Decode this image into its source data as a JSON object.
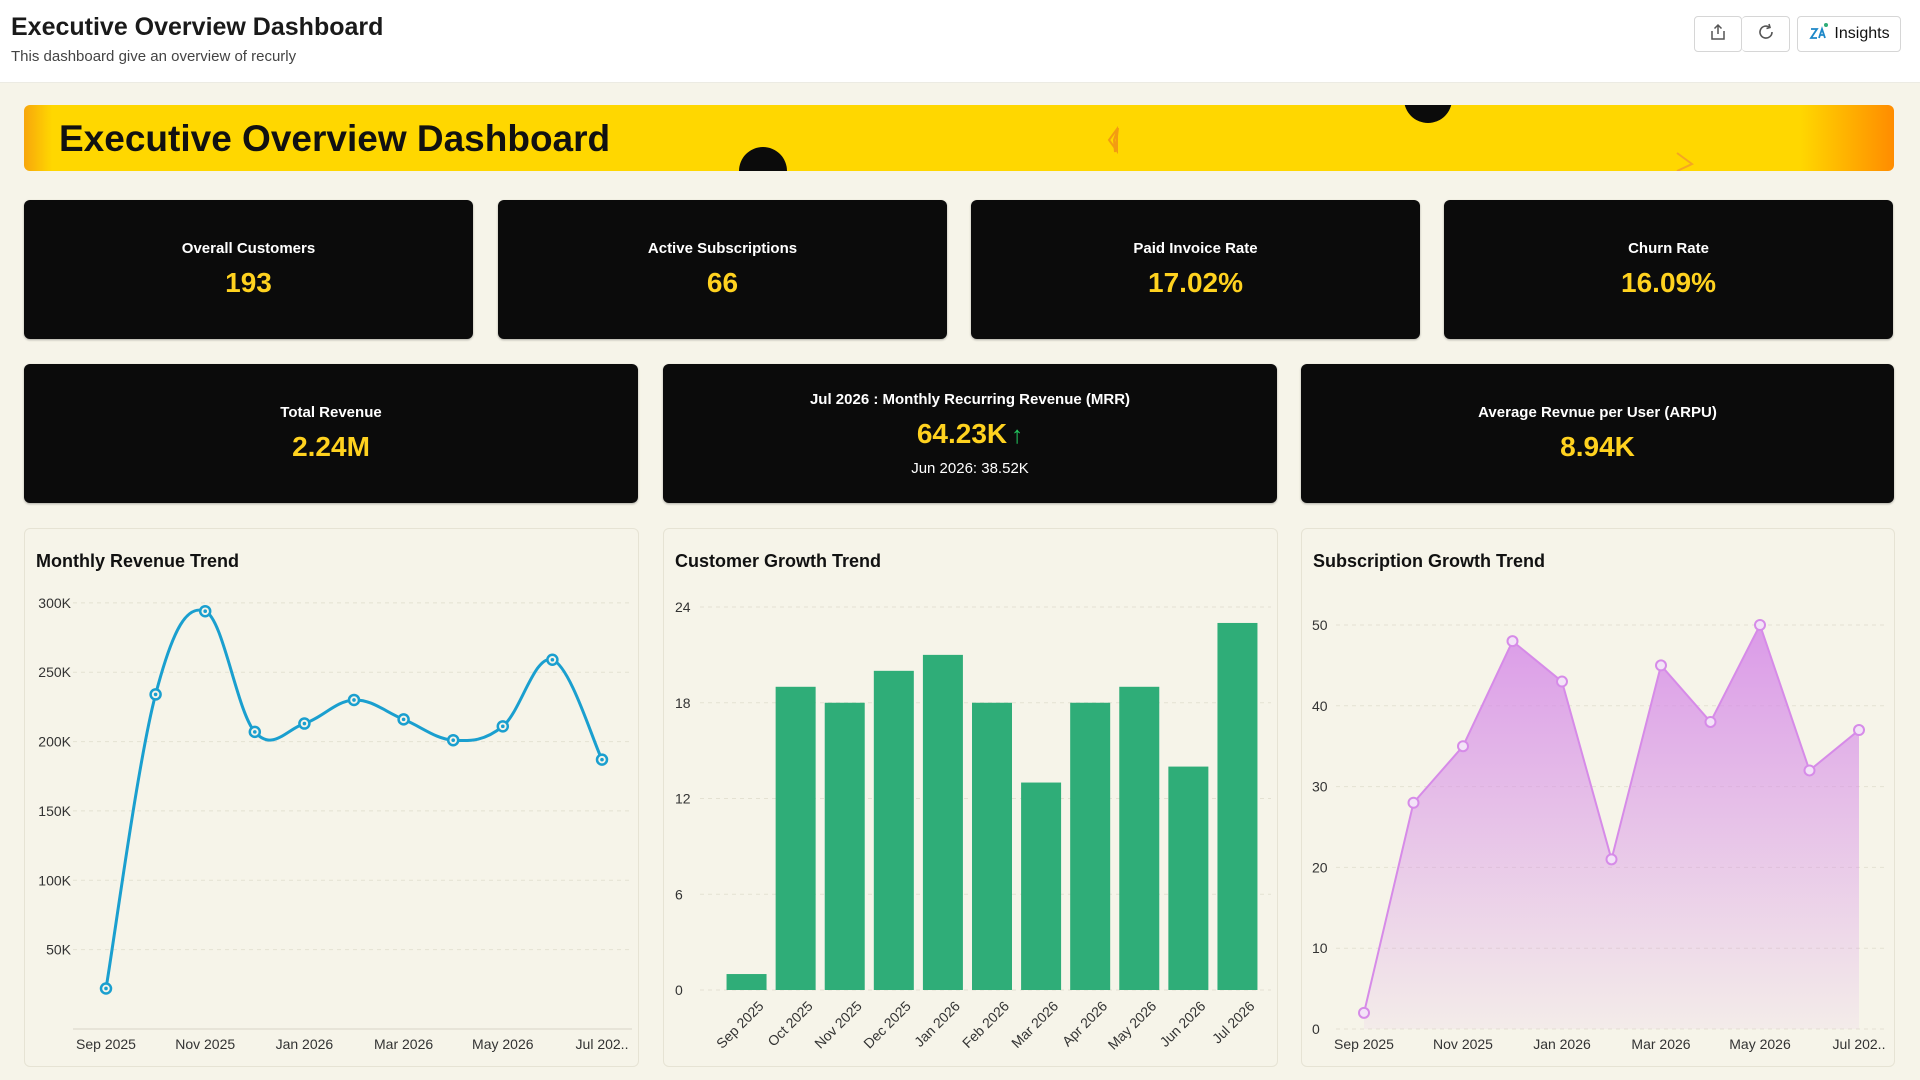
{
  "header": {
    "title": "Executive Overview Dashboard",
    "subtitle": "This dashboard give an overview of recurly",
    "insights_label": "Insights",
    "icons": [
      "export-icon",
      "refresh-icon",
      "insights-icon"
    ]
  },
  "banner": {
    "title": "Executive Overview Dashboard"
  },
  "kpis": {
    "overall_customers": {
      "label": "Overall Customers",
      "value": "193"
    },
    "active_subscriptions": {
      "label": "Active Subscriptions",
      "value": "66"
    },
    "paid_invoice_rate": {
      "label": "Paid Invoice Rate",
      "value": "17.02%"
    },
    "churn_rate": {
      "label": "Churn Rate",
      "value": "16.09%"
    },
    "total_revenue": {
      "label": "Total Revenue",
      "value": "2.24M"
    },
    "mrr": {
      "label": "Jul 2026 : Monthly Recurring Revenue (MRR)",
      "value": "64.23K",
      "trend": "↑",
      "previous": "Jun 2026: 38.52K"
    },
    "arpu": {
      "label": "Average Revnue per User (ARPU)",
      "value": "8.94K"
    }
  },
  "colors": {
    "accent": "#ffd21f",
    "line": "#1a9fcf",
    "bar": "#2fad78",
    "area": "#d68be8",
    "trend_up": "#22c55e"
  },
  "chart_data": [
    {
      "type": "line",
      "title": "Monthly Revenue Trend",
      "x": [
        "Sep 2025",
        "Oct 2025",
        "Nov 2025",
        "Dec 2025",
        "Jan 2026",
        "Feb 2026",
        "Mar 2026",
        "Apr 2026",
        "May 2026",
        "Jun 2026",
        "Jul 2026"
      ],
      "x_tick_labels": [
        "Sep 2025",
        "Nov 2025",
        "Jan 2026",
        "Mar 2026",
        "May 2026",
        "Jul 202.."
      ],
      "values": [
        22000,
        234000,
        294000,
        207000,
        213000,
        230000,
        216000,
        201000,
        211000,
        259000,
        187000
      ],
      "y_ticks": [
        "50K",
        "100K",
        "150K",
        "200K",
        "250K",
        "300K"
      ],
      "ylim": [
        0,
        310000
      ],
      "grid": true
    },
    {
      "type": "bar",
      "title": "Customer Growth Trend",
      "categories": [
        "Sep 2025",
        "Oct 2025",
        "Nov 2025",
        "Dec 2025",
        "Jan 2026",
        "Feb 2026",
        "Mar 2026",
        "Apr 2026",
        "May 2026",
        "Jun 2026",
        "Jul 2026"
      ],
      "values": [
        1,
        19,
        18,
        20,
        21,
        18,
        13,
        18,
        19,
        14,
        23
      ],
      "y_ticks": [
        "0",
        "6",
        "12",
        "18",
        "24"
      ],
      "ylim": [
        0,
        24
      ],
      "grid": true
    },
    {
      "type": "area",
      "title": "Subscription Growth Trend",
      "x": [
        "Sep 2025",
        "Oct 2025",
        "Nov 2025",
        "Dec 2025",
        "Jan 2026",
        "Feb 2026",
        "Mar 2026",
        "Apr 2026",
        "May 2026",
        "Jun 2026",
        "Jul 2026"
      ],
      "x_tick_labels": [
        "Sep 2025",
        "Nov 2025",
        "Jan 2026",
        "Mar 2026",
        "May 2026",
        "Jul 202.."
      ],
      "values": [
        2,
        28,
        35,
        48,
        43,
        21,
        45,
        38,
        50,
        32,
        37
      ],
      "y_ticks": [
        "0",
        "10",
        "20",
        "30",
        "40",
        "50"
      ],
      "ylim": [
        0,
        50
      ],
      "grid": true
    }
  ]
}
